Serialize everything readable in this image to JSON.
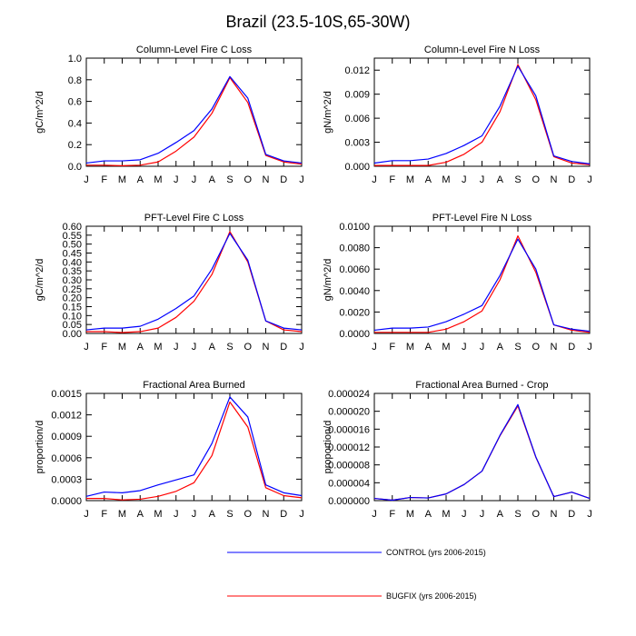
{
  "page_title": "Brazil (23.5-10S,65-30W)",
  "colors": {
    "control": "#0000ff",
    "bugfix": "#ff0000"
  },
  "legend": {
    "control_label": "CONTROL (yrs 2006-2015)",
    "bugfix_label": "BUGFIX (yrs 2006-2015)"
  },
  "chart_data": [
    {
      "type": "line",
      "title": "Column-Level Fire C Loss",
      "xlabel": "",
      "ylabel": "gC/m^2/d",
      "categories": [
        "J",
        "F",
        "M",
        "A",
        "M",
        "J",
        "J",
        "A",
        "S",
        "O",
        "N",
        "D",
        "J"
      ],
      "ylim": [
        0,
        1.0
      ],
      "yticks": [
        "0.0",
        "0.2",
        "0.4",
        "0.6",
        "0.8",
        "1.0"
      ],
      "series": [
        {
          "name": "CONTROL (yrs 2006-2015)",
          "values": [
            0.03,
            0.05,
            0.05,
            0.06,
            0.12,
            0.22,
            0.33,
            0.53,
            0.83,
            0.63,
            0.11,
            0.05,
            0.03
          ]
        },
        {
          "name": "BUGFIX (yrs 2006-2015)",
          "values": [
            0.01,
            0.01,
            0.005,
            0.01,
            0.04,
            0.14,
            0.27,
            0.49,
            0.82,
            0.59,
            0.1,
            0.04,
            0.02
          ]
        }
      ]
    },
    {
      "type": "line",
      "title": "Column-Level Fire N Loss",
      "xlabel": "",
      "ylabel": "gN/m^2/d",
      "categories": [
        "J",
        "F",
        "M",
        "A",
        "M",
        "J",
        "J",
        "A",
        "S",
        "O",
        "N",
        "D",
        "J"
      ],
      "ylim": [
        0,
        0.0135
      ],
      "yticks": [
        "0.000",
        "0.003",
        "0.006",
        "0.009",
        "0.012"
      ],
      "series": [
        {
          "name": "CONTROL (yrs 2006-2015)",
          "values": [
            0.0004,
            0.0007,
            0.0007,
            0.0009,
            0.0016,
            0.0026,
            0.0038,
            0.0075,
            0.0125,
            0.0088,
            0.0013,
            0.0006,
            0.0003
          ]
        },
        {
          "name": "BUGFIX (yrs 2006-2015)",
          "values": [
            0.0001,
            0.0001,
            0.0001,
            0.0001,
            0.0005,
            0.0015,
            0.003,
            0.0068,
            0.0127,
            0.0083,
            0.0012,
            0.0004,
            0.0002
          ]
        }
      ]
    },
    {
      "type": "line",
      "title": "PFT-Level Fire C Loss",
      "xlabel": "",
      "ylabel": "gC/m^2/d",
      "categories": [
        "J",
        "F",
        "M",
        "A",
        "M",
        "J",
        "J",
        "A",
        "S",
        "O",
        "N",
        "D",
        "J"
      ],
      "ylim": [
        0,
        0.6
      ],
      "yticks": [
        "0.00",
        "0.05",
        "0.10",
        "0.15",
        "0.20",
        "0.25",
        "0.30",
        "0.35",
        "0.40",
        "0.45",
        "0.50",
        "0.55",
        "0.60"
      ],
      "series": [
        {
          "name": "CONTROL (yrs 2006-2015)",
          "values": [
            0.02,
            0.03,
            0.03,
            0.04,
            0.08,
            0.14,
            0.21,
            0.36,
            0.56,
            0.41,
            0.07,
            0.03,
            0.02
          ]
        },
        {
          "name": "BUGFIX (yrs 2006-2015)",
          "values": [
            0.01,
            0.01,
            0.005,
            0.01,
            0.03,
            0.09,
            0.18,
            0.33,
            0.57,
            0.4,
            0.07,
            0.02,
            0.01
          ]
        }
      ]
    },
    {
      "type": "line",
      "title": "PFT-Level Fire N Loss",
      "xlabel": "",
      "ylabel": "gN/m^2/d",
      "categories": [
        "J",
        "F",
        "M",
        "A",
        "M",
        "J",
        "J",
        "A",
        "S",
        "O",
        "N",
        "D",
        "J"
      ],
      "ylim": [
        0,
        0.01
      ],
      "yticks": [
        "0.0000",
        "0.0020",
        "0.0040",
        "0.0060",
        "0.0080",
        "0.0100"
      ],
      "series": [
        {
          "name": "CONTROL (yrs 2006-2015)",
          "values": [
            0.0003,
            0.0005,
            0.0005,
            0.0006,
            0.0011,
            0.0018,
            0.0026,
            0.0054,
            0.0088,
            0.006,
            0.0008,
            0.0004,
            0.0002
          ]
        },
        {
          "name": "BUGFIX (yrs 2006-2015)",
          "values": [
            0.0001,
            0.0001,
            0.0001,
            0.0001,
            0.0004,
            0.0011,
            0.0021,
            0.005,
            0.0091,
            0.0057,
            0.0008,
            0.0003,
            0.0001
          ]
        }
      ]
    },
    {
      "type": "line",
      "title": "Fractional Area Burned",
      "xlabel": "",
      "ylabel": "proportion/d",
      "categories": [
        "J",
        "F",
        "M",
        "A",
        "M",
        "J",
        "J",
        "A",
        "S",
        "O",
        "N",
        "D",
        "J"
      ],
      "ylim": [
        0,
        0.0015
      ],
      "yticks": [
        "0.0000",
        "0.0003",
        "0.0006",
        "0.0009",
        "0.0012",
        "0.0015"
      ],
      "series": [
        {
          "name": "CONTROL (yrs 2006-2015)",
          "values": [
            6e-05,
            0.00012,
            0.00011,
            0.00014,
            0.00022,
            0.00029,
            0.00036,
            0.0008,
            0.00145,
            0.00117,
            0.00022,
            0.00011,
            7e-05
          ]
        },
        {
          "name": "BUGFIX (yrs 2006-2015)",
          "values": [
            3e-05,
            3e-05,
            1e-05,
            2e-05,
            6e-05,
            0.00013,
            0.00025,
            0.00063,
            0.00138,
            0.00103,
            0.00018,
            7e-05,
            4e-05
          ]
        }
      ]
    },
    {
      "type": "line",
      "title": "Fractional Area Burned - Crop",
      "xlabel": "",
      "ylabel": "proportion/d",
      "categories": [
        "J",
        "F",
        "M",
        "A",
        "M",
        "J",
        "J",
        "A",
        "S",
        "O",
        "N",
        "D",
        "J"
      ],
      "ylim": [
        0,
        2.4e-05
      ],
      "yticks": [
        "0.000000",
        "0.000004",
        "0.000008",
        "0.000012",
        "0.000016",
        "0.000020",
        "0.000024"
      ],
      "series": [
        {
          "name": "CONTROL (yrs 2006-2015)",
          "values": [
            5e-07,
            1e-07,
            7e-07,
            6e-07,
            1.5e-06,
            3.6e-06,
            6.6e-06,
            1.46e-05,
            2.15e-05,
            9.8e-06,
            9e-07,
            1.9e-06,
            5e-07
          ]
        },
        {
          "name": "BUGFIX (yrs 2006-2015)",
          "values": [
            5e-07,
            1e-07,
            7e-07,
            6e-07,
            1.5e-06,
            3.6e-06,
            6.6e-06,
            1.45e-05,
            2.12e-05,
            9.7e-06,
            9e-07,
            1.9e-06,
            5e-07
          ]
        }
      ]
    }
  ]
}
